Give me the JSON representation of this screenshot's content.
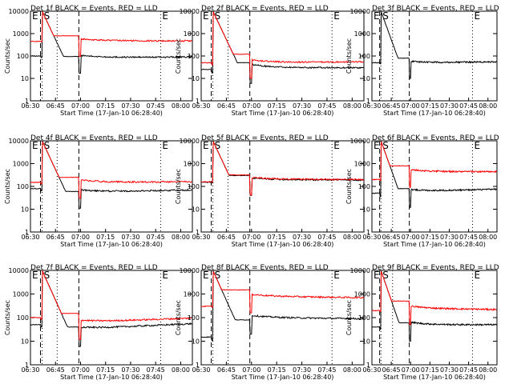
{
  "chart_data": {
    "type": "line",
    "xlabel": "Start Time (17-Jan-10 06:28:40)",
    "ylabel": "Counts/sec",
    "x_ticks": [
      "06:30",
      "06:45",
      "07:00",
      "07:15",
      "07:30",
      "07:45",
      "08:00"
    ],
    "y_ticks": [
      "1",
      "10",
      "100",
      "1000",
      "10000"
    ],
    "ylim": [
      1,
      10000
    ],
    "y_scale": "log",
    "xlim": [
      "06:30",
      "08:07"
    ],
    "markers": [
      {
        "label": "E",
        "time": "06:30",
        "style": "dotted"
      },
      {
        "label": "S",
        "time": "06:37",
        "style": "dotted"
      },
      {
        "label": "",
        "time": "06:36",
        "style": "dashed"
      },
      {
        "label": "",
        "time": "06:46",
        "style": "dotted"
      },
      {
        "label": "",
        "time": "06:59",
        "style": "dashed"
      },
      {
        "label": "E",
        "time": "07:48",
        "style": "dotted"
      }
    ],
    "series_colors": {
      "events": "#000000",
      "lld": "#ff0000"
    },
    "panels": [
      {
        "title": "Det 1f BLACK = Events, RED = LLD",
        "series": [
          {
            "color": "#000000",
            "pre": 100,
            "plateau_start": 95,
            "recovery_peak": 120,
            "recovery_end": 85,
            "level_end": 90,
            "dip": 0.15,
            "cps": 40,
            "recovery": 0.9
          },
          {
            "color": "#ff0000",
            "pre": 450,
            "plateau_start": 800,
            "recovery_peak": 550,
            "recovery_end": 480,
            "level_end": 470,
            "dip": 0.05,
            "cps": 10,
            "recovery": 0.8
          }
        ]
      },
      {
        "title": "Det 2f BLACK = Events, RED = LLD",
        "series": [
          {
            "color": "#000000",
            "pre": 25,
            "plateau_start": 50,
            "recovery_peak": 100,
            "recovery_end": 30,
            "level_end": 30,
            "dip": 0.3,
            "cps": 60,
            "recovery": 1.4
          },
          {
            "color": "#ff0000",
            "pre": 50,
            "plateau_start": 120,
            "recovery_peak": 150,
            "recovery_end": 50,
            "level_end": 55,
            "dip": 0.2,
            "cps": 40,
            "recovery": 1.2
          }
        ]
      },
      {
        "title": "Det 3f BLACK = Events, RED = LLD",
        "series": [
          {
            "color": "#000000",
            "pre": 50,
            "plateau_start": 80,
            "recovery_peak": 70,
            "recovery_end": 50,
            "level_end": 55,
            "dip": 0.1,
            "cps": 0,
            "recovery": 0.6
          }
        ]
      },
      {
        "title": "Det 4f BLACK = Events, RED = LLD",
        "series": [
          {
            "color": "#000000",
            "pre": 80,
            "plateau_start": 60,
            "recovery_peak": 100,
            "recovery_end": 55,
            "level_end": 70,
            "dip": 0.2,
            "cps": 60,
            "recovery": 1.0
          },
          {
            "color": "#ff0000",
            "pre": 150,
            "plateau_start": 250,
            "recovery_peak": 300,
            "recovery_end": 150,
            "level_end": 160,
            "dip": 0.15,
            "cps": 30,
            "recovery": 1.0
          }
        ]
      },
      {
        "title": "Det 5f BLACK = Events, RED = LLD",
        "series": [
          {
            "color": "#000000",
            "pre": 150,
            "plateau_start": 300,
            "recovery_peak": 300,
            "recovery_end": 200,
            "level_end": 190,
            "dip": 0.05,
            "cps": 10,
            "recovery": 0.6
          },
          {
            "color": "#ff0000",
            "pre": 160,
            "plateau_start": 320,
            "recovery_peak": 310,
            "recovery_end": 210,
            "level_end": 200,
            "dip": 0.05,
            "cps": 10,
            "recovery": 0.6
          }
        ]
      },
      {
        "title": "Det 6f BLACK = Events, RED = LLD",
        "series": [
          {
            "color": "#000000",
            "pre": 50,
            "plateau_start": 80,
            "recovery_peak": 100,
            "recovery_end": 60,
            "level_end": 75,
            "dip": 0.3,
            "cps": 20,
            "recovery": 0.8
          },
          {
            "color": "#ff0000",
            "pre": 200,
            "plateau_start": 800,
            "recovery_peak": 600,
            "recovery_end": 450,
            "level_end": 440,
            "dip": 0.1,
            "cps": 10,
            "recovery": 0.8
          }
        ]
      },
      {
        "title": "Det 7f BLACK = Events, RED = LLD",
        "series": [
          {
            "color": "#000000",
            "pre": 50,
            "plateau_start": 40,
            "recovery_peak": 100,
            "recovery_end": 30,
            "level_end": 55,
            "dip": 0.2,
            "cps": 50,
            "recovery": 1.2
          },
          {
            "color": "#ff0000",
            "pre": 100,
            "plateau_start": 150,
            "recovery_peak": 200,
            "recovery_end": 60,
            "level_end": 95,
            "dip": 0.15,
            "cps": 40,
            "recovery": 1.1
          }
        ]
      },
      {
        "title": "Det 8f BLACK = Events, RED = LLD",
        "series": [
          {
            "color": "#000000",
            "pre": 15,
            "plateau_start": 80,
            "recovery_peak": 200,
            "recovery_end": 100,
            "level_end": 90,
            "dip": 0.3,
            "cps": 20,
            "recovery": 0.9
          },
          {
            "color": "#ff0000",
            "pre": 300,
            "plateau_start": 1500,
            "recovery_peak": 1200,
            "recovery_end": 800,
            "level_end": 700,
            "dip": 0.1,
            "cps": 10,
            "recovery": 0.8
          }
        ]
      },
      {
        "title": "Det 9f BLACK = Events, RED = LLD",
        "series": [
          {
            "color": "#000000",
            "pre": 40,
            "plateau_start": 60,
            "recovery_peak": 100,
            "recovery_end": 50,
            "level_end": 50,
            "dip": 0.2,
            "cps": 20,
            "recovery": 1.0
          },
          {
            "color": "#ff0000",
            "pre": 200,
            "plateau_start": 500,
            "recovery_peak": 400,
            "recovery_end": 250,
            "level_end": 220,
            "dip": 0.1,
            "cps": 15,
            "recovery": 0.9
          }
        ]
      }
    ]
  }
}
